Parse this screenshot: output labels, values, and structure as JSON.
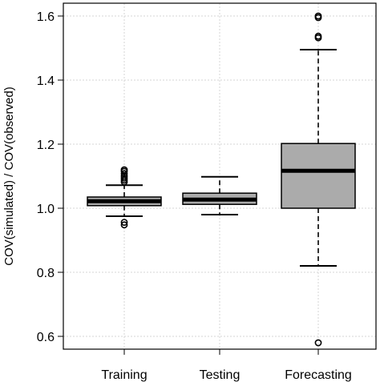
{
  "chart_data": {
    "type": "boxplot",
    "title": "",
    "xlabel": "",
    "ylabel": "COV(simulated) / COV(observed)",
    "ylim": [
      0.56,
      1.64
    ],
    "y_ticks": [
      "0.6",
      "0.8",
      "1.0",
      "1.2",
      "1.4",
      "1.6"
    ],
    "grid": true,
    "categories": [
      "Training",
      "Testing",
      "Forecasting"
    ],
    "boxes": [
      {
        "category": "Training",
        "whisker_low": 0.975,
        "q1": 1.008,
        "median": 1.022,
        "q3": 1.035,
        "whisker_high": 1.072,
        "outliers": [
          0.948,
          0.956,
          1.082,
          1.088,
          1.094,
          1.1,
          1.108,
          1.115,
          1.12
        ]
      },
      {
        "category": "Testing",
        "whisker_low": 0.98,
        "q1": 1.012,
        "median": 1.027,
        "q3": 1.047,
        "whisker_high": 1.098,
        "outliers": []
      },
      {
        "category": "Forecasting",
        "whisker_low": 0.82,
        "q1": 1.0,
        "median": 1.117,
        "q3": 1.202,
        "whisker_high": 1.495,
        "outliers": [
          0.58,
          1.532,
          1.537,
          1.595,
          1.6
        ]
      }
    ],
    "box_fill": "#ababab",
    "median_color": "#000000",
    "grid_color": "#d6d6d6"
  }
}
